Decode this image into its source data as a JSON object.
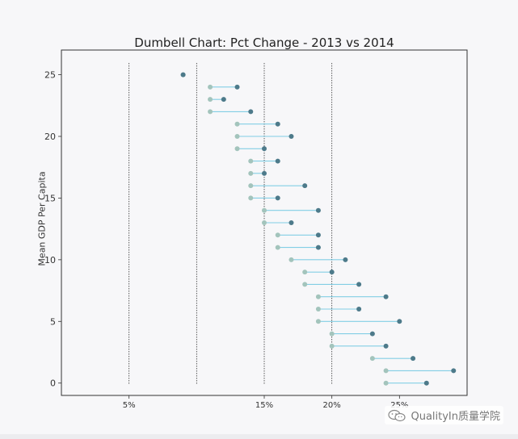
{
  "chart_data": {
    "type": "dumbbell",
    "title": "Dumbell Chart: Pct Change - 2013 vs 2014",
    "xlabel": "",
    "ylabel": "Mean GDP Per Capita",
    "xlim": [
      0.0,
      0.3
    ],
    "ylim": [
      -1,
      27
    ],
    "x_ticks": [
      0.05,
      0.15,
      0.2,
      0.25
    ],
    "x_tick_labels": [
      "5%",
      "15%",
      "20%",
      "25%"
    ],
    "y_ticks": [
      0,
      5,
      10,
      15,
      20,
      25
    ],
    "y_tick_labels": [
      "0",
      "5",
      "10",
      "15",
      "20",
      "25"
    ],
    "vlines": [
      0.05,
      0.1,
      0.15,
      0.2
    ],
    "grid": false,
    "colors": {
      "start_marker": "#a3c4bc",
      "end_marker": "#4d7a8a",
      "connector": "#5bc0de",
      "vline": "#333333",
      "frame": "#333333"
    },
    "points": [
      {
        "y": 0,
        "x_2013": 0.24,
        "x_2014": 0.27
      },
      {
        "y": 1,
        "x_2013": 0.24,
        "x_2014": 0.29
      },
      {
        "y": 2,
        "x_2013": 0.23,
        "x_2014": 0.26
      },
      {
        "y": 3,
        "x_2013": 0.2,
        "x_2014": 0.24
      },
      {
        "y": 4,
        "x_2013": 0.2,
        "x_2014": 0.23
      },
      {
        "y": 5,
        "x_2013": 0.19,
        "x_2014": 0.25
      },
      {
        "y": 6,
        "x_2013": 0.19,
        "x_2014": 0.22
      },
      {
        "y": 7,
        "x_2013": 0.19,
        "x_2014": 0.24
      },
      {
        "y": 8,
        "x_2013": 0.18,
        "x_2014": 0.22
      },
      {
        "y": 9,
        "x_2013": 0.18,
        "x_2014": 0.2
      },
      {
        "y": 10,
        "x_2013": 0.17,
        "x_2014": 0.21
      },
      {
        "y": 11,
        "x_2013": 0.16,
        "x_2014": 0.19
      },
      {
        "y": 12,
        "x_2013": 0.16,
        "x_2014": 0.19
      },
      {
        "y": 13,
        "x_2013": 0.15,
        "x_2014": 0.17
      },
      {
        "y": 14,
        "x_2013": 0.15,
        "x_2014": 0.19
      },
      {
        "y": 15,
        "x_2013": 0.14,
        "x_2014": 0.16
      },
      {
        "y": 16,
        "x_2013": 0.14,
        "x_2014": 0.18
      },
      {
        "y": 17,
        "x_2013": 0.14,
        "x_2014": 0.15
      },
      {
        "y": 18,
        "x_2013": 0.14,
        "x_2014": 0.16
      },
      {
        "y": 19,
        "x_2013": 0.13,
        "x_2014": 0.15
      },
      {
        "y": 20,
        "x_2013": 0.13,
        "x_2014": 0.17
      },
      {
        "y": 21,
        "x_2013": 0.13,
        "x_2014": 0.16
      },
      {
        "y": 22,
        "x_2013": 0.11,
        "x_2014": 0.14
      },
      {
        "y": 23,
        "x_2013": 0.11,
        "x_2014": 0.12
      },
      {
        "y": 24,
        "x_2013": 0.11,
        "x_2014": 0.13
      },
      {
        "y": 25,
        "x_2013": 0.09,
        "x_2014": 0.09
      }
    ]
  },
  "watermark": {
    "text": "QualityIn质量学院",
    "icon": "wechat-icon"
  }
}
